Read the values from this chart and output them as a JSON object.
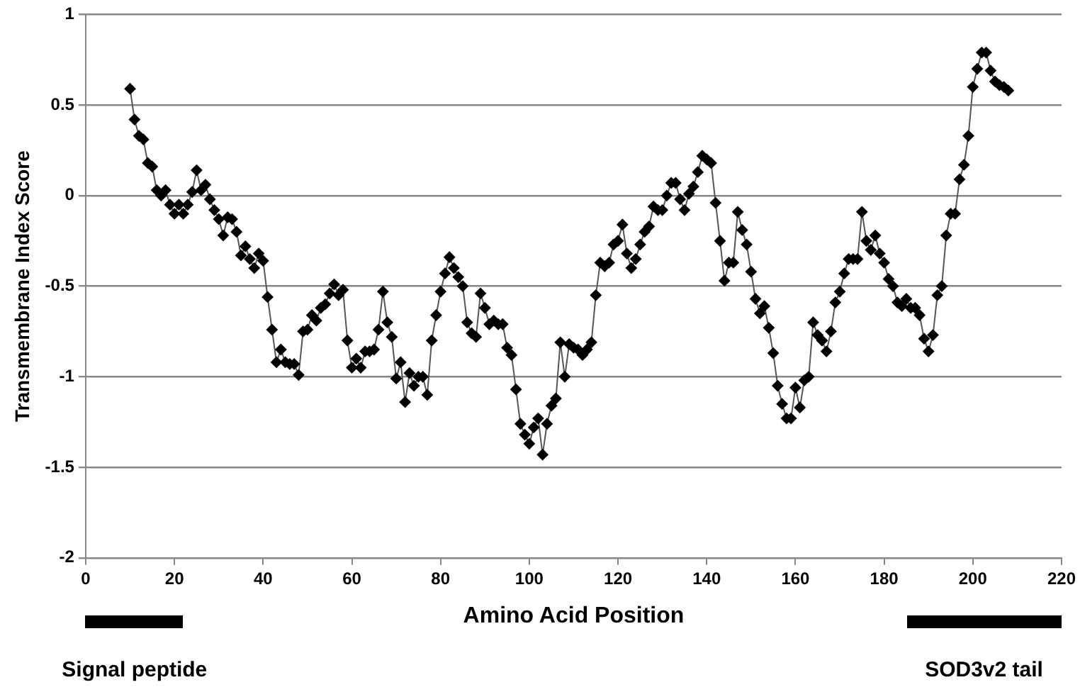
{
  "chart_data": {
    "type": "line",
    "xlabel": "Amino Acid Position",
    "ylabel": "Transmembrane Index Score",
    "x": [
      10,
      11,
      12,
      13,
      14,
      15,
      16,
      17,
      18,
      19,
      20,
      21,
      22,
      23,
      24,
      25,
      26,
      27,
      28,
      29,
      30,
      31,
      32,
      33,
      34,
      35,
      36,
      37,
      38,
      39,
      40,
      41,
      42,
      43,
      44,
      45,
      46,
      47,
      48,
      49,
      50,
      51,
      52,
      53,
      54,
      55,
      56,
      57,
      58,
      59,
      60,
      61,
      62,
      63,
      64,
      65,
      66,
      67,
      68,
      69,
      70,
      71,
      72,
      73,
      74,
      75,
      76,
      77,
      78,
      79,
      80,
      81,
      82,
      83,
      84,
      85,
      86,
      87,
      88,
      89,
      90,
      91,
      92,
      93,
      94,
      95,
      96,
      97,
      98,
      99,
      100,
      101,
      102,
      103,
      104,
      105,
      106,
      107,
      108,
      109,
      110,
      111,
      112,
      113,
      114,
      115,
      116,
      117,
      118,
      119,
      120,
      121,
      122,
      123,
      124,
      125,
      126,
      127,
      128,
      129,
      130,
      131,
      132,
      133,
      134,
      135,
      136,
      137,
      138,
      139,
      140,
      141,
      142,
      143,
      144,
      145,
      146,
      147,
      148,
      149,
      150,
      151,
      152,
      153,
      154,
      155,
      156,
      157,
      158,
      159,
      160,
      161,
      162,
      163,
      164,
      165,
      166,
      167,
      168,
      169,
      170,
      171,
      172,
      173,
      174,
      175,
      176,
      177,
      178,
      179,
      180,
      181,
      182,
      183,
      184,
      185,
      186,
      187,
      188,
      189,
      190,
      191,
      192,
      193,
      194,
      195,
      196,
      197,
      198,
      199,
      200,
      201,
      202,
      203,
      204,
      205,
      206,
      207,
      208
    ],
    "series": [
      {
        "color": "#000000",
        "values": [
          0.59,
          0.42,
          0.33,
          0.31,
          0.18,
          0.16,
          0.03,
          0.0,
          0.03,
          -0.05,
          -0.1,
          -0.05,
          -0.1,
          -0.05,
          0.02,
          0.14,
          0.03,
          0.06,
          -0.02,
          -0.08,
          -0.13,
          -0.22,
          -0.12,
          -0.13,
          -0.2,
          -0.33,
          -0.28,
          -0.35,
          -0.4,
          -0.32,
          -0.36,
          -0.56,
          -0.74,
          -0.92,
          -0.85,
          -0.92,
          -0.93,
          -0.93,
          -0.99,
          -0.75,
          -0.74,
          -0.66,
          -0.69,
          -0.62,
          -0.6,
          -0.54,
          -0.49,
          -0.55,
          -0.52,
          -0.8,
          -0.95,
          -0.9,
          -0.95,
          -0.86,
          -0.86,
          -0.85,
          -0.74,
          -0.53,
          -0.7,
          -0.78,
          -1.01,
          -0.92,
          -1.14,
          -0.98,
          -1.05,
          -1.0,
          -1.0,
          -1.1,
          -0.8,
          -0.66,
          -0.53,
          -0.43,
          -0.34,
          -0.4,
          -0.45,
          -0.5,
          -0.7,
          -0.76,
          -0.78,
          -0.54,
          -0.62,
          -0.71,
          -0.69,
          -0.71,
          -0.71,
          -0.84,
          -0.88,
          -1.07,
          -1.26,
          -1.32,
          -1.37,
          -1.28,
          -1.23,
          -1.43,
          -1.26,
          -1.16,
          -1.12,
          -0.81,
          -1.0,
          -0.82,
          -0.84,
          -0.85,
          -0.88,
          -0.85,
          -0.81,
          -0.55,
          -0.37,
          -0.39,
          -0.37,
          -0.27,
          -0.25,
          -0.16,
          -0.32,
          -0.4,
          -0.35,
          -0.27,
          -0.2,
          -0.17,
          -0.06,
          -0.08,
          -0.08,
          0.0,
          0.07,
          0.07,
          -0.02,
          -0.08,
          0.01,
          0.05,
          0.13,
          0.22,
          0.2,
          0.18,
          -0.04,
          -0.25,
          -0.47,
          -0.37,
          -0.37,
          -0.09,
          -0.19,
          -0.27,
          -0.42,
          -0.57,
          -0.65,
          -0.61,
          -0.73,
          -0.87,
          -1.05,
          -1.15,
          -1.23,
          -1.23,
          -1.06,
          -1.17,
          -1.02,
          -1.0,
          -0.7,
          -0.77,
          -0.8,
          -0.86,
          -0.75,
          -0.59,
          -0.53,
          -0.43,
          -0.35,
          -0.35,
          -0.35,
          -0.09,
          -0.25,
          -0.3,
          -0.22,
          -0.32,
          -0.37,
          -0.46,
          -0.5,
          -0.59,
          -0.61,
          -0.57,
          -0.62,
          -0.62,
          -0.66,
          -0.79,
          -0.86,
          -0.77,
          -0.55,
          -0.5,
          -0.22,
          -0.1,
          -0.1,
          0.09,
          0.17,
          0.33,
          0.6,
          0.7,
          0.79,
          0.79,
          0.69,
          0.63,
          0.61,
          0.6,
          0.58
        ]
      }
    ],
    "xlim": [
      0,
      220
    ],
    "xticks": [
      0,
      20,
      40,
      60,
      80,
      100,
      120,
      140,
      160,
      180,
      200,
      220
    ],
    "ylim": [
      -2,
      1
    ],
    "yticks": [
      -2,
      -1.5,
      -1,
      -0.5,
      0,
      0.5,
      1
    ],
    "grid": "y",
    "marker": "diamond",
    "line_style": "solid",
    "annotations": [
      "Signal peptide",
      "SOD3v2 tail"
    ]
  }
}
